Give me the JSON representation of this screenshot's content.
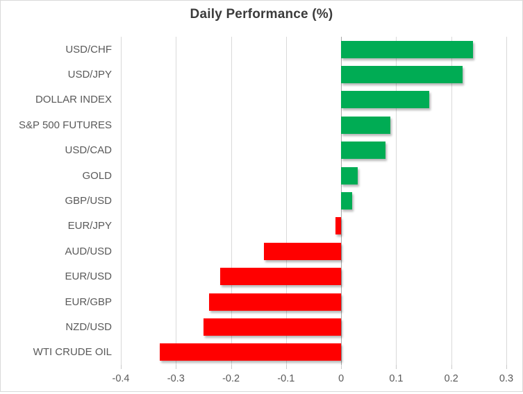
{
  "chart_data": {
    "type": "bar",
    "orientation": "horizontal",
    "title": "Daily Performance (%)",
    "categories": [
      "USD/CHF",
      "USD/JPY",
      "DOLLAR INDEX",
      "S&P 500 FUTURES",
      "USD/CAD",
      "GOLD",
      "GBP/USD",
      "EUR/JPY",
      "AUD/USD",
      "EUR/USD",
      "EUR/GBP",
      "NZD/USD",
      "WTI CRUDE OIL"
    ],
    "values": [
      0.24,
      0.22,
      0.16,
      0.09,
      0.08,
      0.03,
      0.02,
      -0.01,
      -0.14,
      -0.22,
      -0.24,
      -0.25,
      -0.33
    ],
    "xlabel": "",
    "ylabel": "",
    "xlim": [
      -0.4,
      0.3
    ],
    "x_ticks": [
      -0.4,
      -0.3,
      -0.2,
      -0.1,
      0,
      0.1,
      0.2,
      0.3
    ],
    "x_tick_labels": [
      "-0.4",
      "-0.3",
      "-0.2",
      "-0.1",
      "0",
      "0.1",
      "0.2",
      "0.3"
    ],
    "grid": true,
    "legend": false,
    "colors": {
      "positive": "#00ac54",
      "negative": "#ff0000",
      "gridline": "#d9d9d9",
      "axis_line": "#a6a6a6",
      "title_text": "#3b3b3b",
      "label_text": "#595959"
    }
  }
}
